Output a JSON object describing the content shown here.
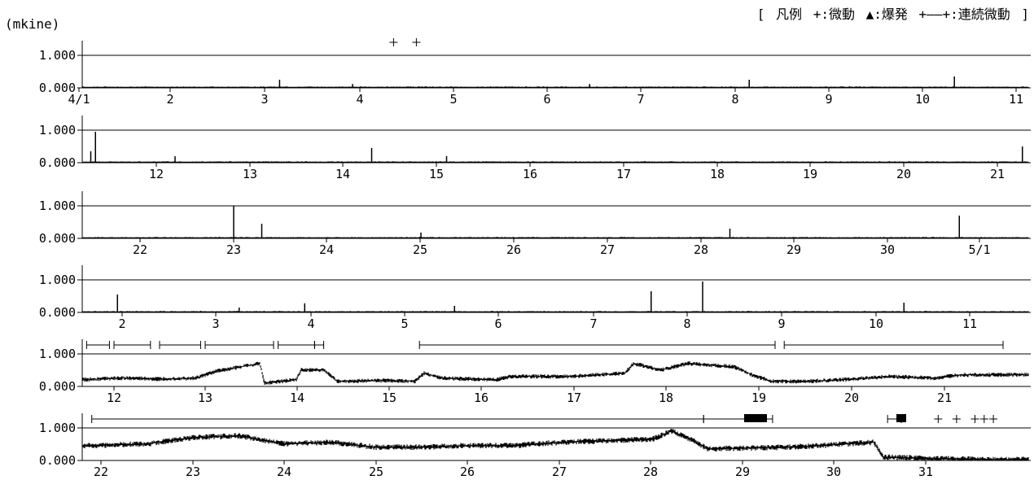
{
  "unit_label": "(mkine)",
  "legend": {
    "open": "[",
    "title": "凡例",
    "tremor": "+:微動",
    "eruption": "▲:爆発",
    "continuous": "+——+:連続微動",
    "close": "]"
  },
  "chart_data": [
    {
      "type": "line",
      "panel": 1,
      "ylabels": [
        "1.000",
        "0.000"
      ],
      "ylim": [
        0,
        1.2
      ],
      "xticks": [
        "4/1",
        "2",
        "3",
        "4",
        "5",
        "6",
        "7",
        "8",
        "9",
        "10",
        "11"
      ],
      "level": 0.03,
      "noise": 0.02,
      "spikes": [
        {
          "x": 3.2,
          "v": 0.25
        },
        {
          "x": 4.0,
          "v": 0.12
        },
        {
          "x": 6.6,
          "v": 0.12
        },
        {
          "x": 8.35,
          "v": 0.25
        },
        {
          "x": 10.6,
          "v": 0.35
        }
      ],
      "tremor_marks": [
        4.45,
        4.7
      ],
      "continuous_marks": []
    },
    {
      "type": "line",
      "panel": 2,
      "ylabels": [
        "1.000",
        "0.000"
      ],
      "ylim": [
        0,
        1.2
      ],
      "xticks": [
        "12",
        "13",
        "14",
        "15",
        "16",
        "17",
        "18",
        "19",
        "20",
        "21"
      ],
      "level": 0.03,
      "noise": 0.02,
      "spikes": [
        {
          "x": 11.35,
          "v": 0.95
        },
        {
          "x": 11.3,
          "v": 0.35
        },
        {
          "x": 12.2,
          "v": 0.2
        },
        {
          "x": 14.3,
          "v": 0.45
        },
        {
          "x": 15.1,
          "v": 0.2
        },
        {
          "x": 21.25,
          "v": 0.5
        }
      ],
      "tremor_marks": [],
      "continuous_marks": []
    },
    {
      "type": "line",
      "panel": 3,
      "ylabels": [
        "1.000",
        "0.000"
      ],
      "ylim": [
        0,
        1.2
      ],
      "xticks": [
        "22",
        "23",
        "24",
        "25",
        "26",
        "27",
        "28",
        "29",
        "30",
        "5/1"
      ],
      "level": 0.03,
      "noise": 0.02,
      "spikes": [
        {
          "x": 23.0,
          "v": 1.0
        },
        {
          "x": 23.3,
          "v": 0.45
        },
        {
          "x": 25.0,
          "v": 0.18
        },
        {
          "x": 28.3,
          "v": 0.3
        },
        {
          "x": 30.75,
          "v": 0.7
        }
      ],
      "tremor_marks": [],
      "continuous_marks": []
    },
    {
      "type": "line",
      "panel": 4,
      "ylabels": [
        "1.000",
        "0.000"
      ],
      "ylim": [
        0,
        1.2
      ],
      "xticks": [
        "2",
        "3",
        "4",
        "5",
        "6",
        "7",
        "8",
        "9",
        "10",
        "11"
      ],
      "level": 0.03,
      "noise": 0.02,
      "spikes": [
        {
          "x": 1.95,
          "v": 0.55
        },
        {
          "x": 3.25,
          "v": 0.15
        },
        {
          "x": 3.95,
          "v": 0.28
        },
        {
          "x": 5.55,
          "v": 0.2
        },
        {
          "x": 7.65,
          "v": 0.65
        },
        {
          "x": 8.2,
          "v": 0.95
        },
        {
          "x": 10.35,
          "v": 0.3
        }
      ],
      "tremor_marks": [],
      "continuous_marks": []
    },
    {
      "type": "line",
      "panel": 5,
      "ylabels": [
        "1.000",
        "0.000"
      ],
      "ylim": [
        0,
        1.2
      ],
      "xticks": [
        "12",
        "13",
        "14",
        "15",
        "16",
        "17",
        "18",
        "19",
        "20",
        "21"
      ],
      "segments": [
        [
          11.6,
          0.2
        ],
        [
          12.1,
          0.25
        ],
        [
          12.5,
          0.22
        ],
        [
          12.9,
          0.25
        ],
        [
          13.1,
          0.45
        ],
        [
          13.6,
          0.7
        ],
        [
          13.65,
          0.1
        ],
        [
          14.0,
          0.2
        ],
        [
          14.05,
          0.5
        ],
        [
          14.3,
          0.5
        ],
        [
          14.45,
          0.15
        ],
        [
          15.0,
          0.18
        ],
        [
          15.3,
          0.15
        ],
        [
          15.4,
          0.4
        ],
        [
          15.6,
          0.25
        ],
        [
          16.2,
          0.2
        ],
        [
          16.35,
          0.3
        ],
        [
          17.0,
          0.3
        ],
        [
          17.6,
          0.4
        ],
        [
          17.7,
          0.7
        ],
        [
          18.0,
          0.5
        ],
        [
          18.3,
          0.7
        ],
        [
          18.8,
          0.6
        ],
        [
          19.0,
          0.35
        ],
        [
          19.2,
          0.15
        ],
        [
          19.6,
          0.15
        ],
        [
          20.0,
          0.2
        ],
        [
          20.5,
          0.3
        ],
        [
          21.0,
          0.25
        ],
        [
          21.3,
          0.35
        ],
        [
          21.75,
          0.35
        ]
      ],
      "noise": 0.06,
      "tremor_marks": [],
      "continuous_marks": [
        [
          11.7,
          11.95
        ],
        [
          12.0,
          12.4
        ],
        [
          12.5,
          12.95
        ],
        [
          13.0,
          13.75
        ],
        [
          13.8,
          14.2
        ],
        [
          14.2,
          14.3
        ],
        [
          15.35,
          19.25
        ],
        [
          19.35,
          21.75
        ]
      ]
    },
    {
      "type": "line",
      "panel": 6,
      "ylabels": [
        "1.000",
        "0.000"
      ],
      "ylim": [
        0,
        1.2
      ],
      "xticks": [
        "22",
        "23",
        "24",
        "25",
        "26",
        "27",
        "28",
        "29",
        "30",
        "31"
      ],
      "segments": [
        [
          21.9,
          0.45
        ],
        [
          22.5,
          0.5
        ],
        [
          23.0,
          0.7
        ],
        [
          23.5,
          0.75
        ],
        [
          24.0,
          0.5
        ],
        [
          24.5,
          0.55
        ],
        [
          25.0,
          0.4
        ],
        [
          25.5,
          0.4
        ],
        [
          26.0,
          0.45
        ],
        [
          26.5,
          0.45
        ],
        [
          27.0,
          0.55
        ],
        [
          27.5,
          0.6
        ],
        [
          28.0,
          0.65
        ],
        [
          28.2,
          0.9
        ],
        [
          28.4,
          0.65
        ],
        [
          28.6,
          0.35
        ],
        [
          29.5,
          0.4
        ],
        [
          30.4,
          0.55
        ],
        [
          30.5,
          0.1
        ],
        [
          31.0,
          0.05
        ],
        [
          31.8,
          0.02
        ]
      ],
      "noise": 0.08,
      "tremor_marks": [
        31.1,
        31.3,
        31.5,
        31.6,
        31.7
      ],
      "continuous_marks": [
        [
          21.9,
          28.55
        ],
        [
          28.55,
          29.3
        ],
        [
          30.55,
          30.7
        ]
      ]
    }
  ]
}
